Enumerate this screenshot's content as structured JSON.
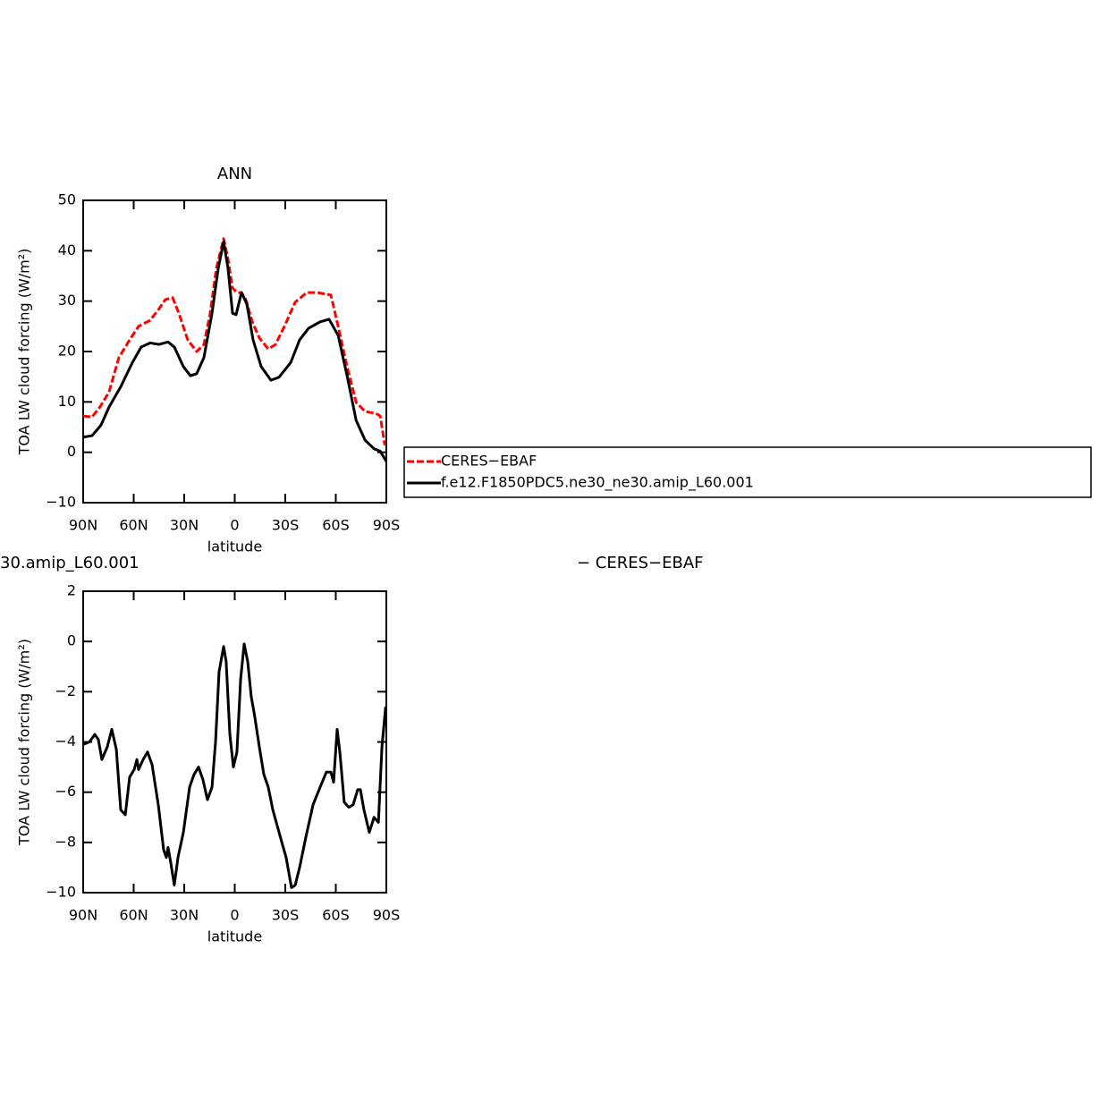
{
  "chart_data": [
    {
      "type": "line",
      "title": "ANN",
      "xlabel": "latitude",
      "ylabel": "TOA LW cloud forcing (W/m²)",
      "xlim": [
        90,
        -90
      ],
      "ylim": [
        -10,
        50
      ],
      "xticks": [
        {
          "value": 90,
          "label": "90N"
        },
        {
          "value": 60,
          "label": "60N"
        },
        {
          "value": 30,
          "label": "30N"
        },
        0,
        {
          "value": -30,
          "label": "30S"
        },
        {
          "value": -60,
          "label": "60S"
        },
        {
          "value": -90,
          "label": "90S"
        }
      ],
      "yticks": [
        {
          "value": -10,
          "label": "−10"
        },
        0,
        10,
        20,
        30,
        40,
        50
      ],
      "legend": "right",
      "series": [
        {
          "name": "CERES−EBAF",
          "color": "#ff0000",
          "style": "dashed",
          "x": [
            90,
            84.7,
            80,
            74.6,
            68.8,
            62.4,
            57.1,
            50.2,
            44.9,
            41.2,
            36.9,
            33.2,
            27.9,
            22.6,
            18.3,
            14.6,
            10.9,
            6.6,
            4,
            1.3,
            -1.3,
            -4,
            -6.6,
            -10.4,
            -14.6,
            -19.9,
            -24.2,
            -29.5,
            -35.9,
            -42.8,
            -49.2,
            -57.1,
            -61.4,
            -66.7,
            -72.1,
            -77.4,
            -83.8,
            -86.4,
            -89.1
          ],
          "values": [
            7.2,
            7,
            9,
            12,
            18.8,
            22.3,
            25,
            26.2,
            28.5,
            30.3,
            30.7,
            27.6,
            22.3,
            20,
            21.4,
            27.6,
            36.5,
            42.4,
            38.3,
            32.6,
            31.7,
            31.7,
            30.3,
            25.9,
            22.7,
            20.5,
            21.4,
            25,
            29.8,
            31.7,
            31.7,
            31.2,
            25,
            17,
            9.9,
            8.1,
            7.7,
            7.2,
            1.4
          ]
        },
        {
          "name": "f.e12.F1850PDC5.ne30_ne30.amip_L60.001",
          "color": "#000000",
          "style": "solid",
          "x": [
            90,
            84.7,
            79.4,
            74.6,
            67.7,
            60.8,
            55.5,
            50.2,
            44.9,
            39.6,
            35.9,
            30.5,
            26.3,
            22.6,
            18.3,
            13.5,
            9.8,
            6.6,
            4,
            1.3,
            -0.8,
            -4,
            -7.2,
            -10.9,
            -15.7,
            -21.5,
            -26.3,
            -33.2,
            -38.5,
            -43.8,
            -50.7,
            -56,
            -61.4,
            -66.7,
            -72.1,
            -77.4,
            -82.7,
            -86.4,
            -90
          ],
          "values": [
            3,
            3.3,
            5.4,
            9,
            13,
            17.8,
            20.9,
            21.7,
            21.4,
            21.9,
            20.9,
            17,
            15.2,
            15.6,
            18.8,
            27.6,
            36.5,
            41.8,
            36.5,
            27.6,
            27.3,
            31.7,
            29.4,
            22.3,
            17,
            14.3,
            14.9,
            17.8,
            22.3,
            24.6,
            25.9,
            26.4,
            23.2,
            15.2,
            6.3,
            2.4,
            0.7,
            0.2,
            -1.8
          ]
        }
      ]
    },
    {
      "type": "line",
      "left_title": "30.amip_L60.001",
      "right_title": "− CERES−EBAF",
      "xlabel": "latitude",
      "ylabel": "TOA LW cloud forcing (W/m²)",
      "xlim": [
        90,
        -90
      ],
      "ylim": [
        -10,
        2
      ],
      "xticks": [
        {
          "value": 90,
          "label": "90N"
        },
        {
          "value": 60,
          "label": "60N"
        },
        {
          "value": 30,
          "label": "30N"
        },
        0,
        {
          "value": -30,
          "label": "30S"
        },
        {
          "value": -60,
          "label": "60S"
        },
        {
          "value": -90,
          "label": "90S"
        }
      ],
      "yticks": [
        {
          "value": -10,
          "label": "−10"
        },
        {
          "value": -8,
          "label": "−8"
        },
        {
          "value": -6,
          "label": "−6"
        },
        {
          "value": -4,
          "label": "−4"
        },
        {
          "value": -2,
          "label": "−2"
        },
        0,
        2
      ],
      "series": [
        {
          "color": "#000000",
          "style": "solid",
          "x": [
            90,
            86.3,
            83.1,
            81,
            78.9,
            75.7,
            73,
            70.3,
            67.7,
            65,
            62.4,
            59.7,
            58.1,
            57.1,
            54.4,
            51.8,
            49.1,
            45.4,
            42.2,
            40.6,
            39.6,
            38,
            35.9,
            33.7,
            30.5,
            26.8,
            24.2,
            21.5,
            18.9,
            16.2,
            13.5,
            11.4,
            9.3,
            6.6,
            5.1,
            2.9,
            0.8,
            -1.3,
            -3.5,
            -5.6,
            -7.7,
            -9.8,
            -11.9,
            -14.6,
            -17.3,
            -19.9,
            -22.6,
            -26.3,
            -30.5,
            -33.7,
            -35.9,
            -38.5,
            -42.2,
            -46.5,
            -50.7,
            -54.4,
            -57.1,
            -58.7,
            -60.8,
            -62.4,
            -65,
            -67.7,
            -70.3,
            -73,
            -74.6,
            -76.7,
            -79.9,
            -82.7,
            -85.3,
            -87.4,
            -89.6
          ],
          "values": [
            -4.1,
            -4,
            -3.7,
            -3.9,
            -4.7,
            -4.2,
            -3.5,
            -4.3,
            -6.7,
            -6.9,
            -5.4,
            -5.1,
            -4.7,
            -5.1,
            -4.7,
            -4.4,
            -4.9,
            -6.5,
            -8.3,
            -8.6,
            -8.2,
            -8.8,
            -9.7,
            -8.6,
            -7.6,
            -5.8,
            -5.3,
            -5,
            -5.5,
            -6.3,
            -5.8,
            -4,
            -1.2,
            -0.2,
            -0.8,
            -3.7,
            -5,
            -4.4,
            -1.5,
            -0.1,
            -0.8,
            -2.2,
            -3,
            -4.2,
            -5.3,
            -5.8,
            -6.7,
            -7.6,
            -8.6,
            -9.8,
            -9.7,
            -9,
            -7.8,
            -6.5,
            -5.8,
            -5.2,
            -5.2,
            -5.6,
            -3.5,
            -4.4,
            -6.4,
            -6.6,
            -6.5,
            -5.9,
            -5.9,
            -6.7,
            -7.6,
            -7,
            -7.2,
            -4.2,
            -2.6
          ]
        }
      ]
    }
  ]
}
